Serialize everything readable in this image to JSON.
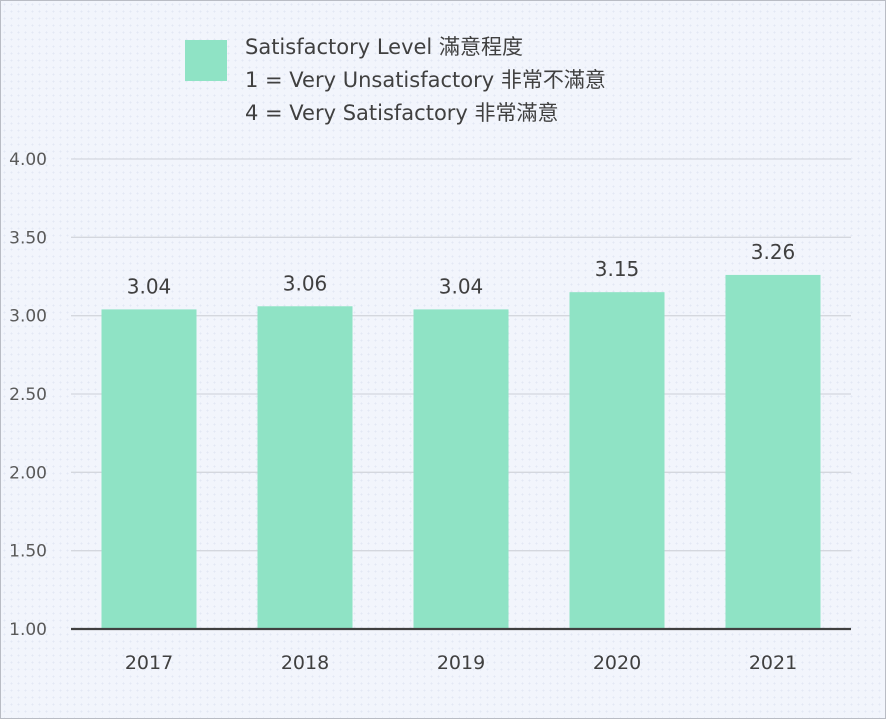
{
  "legend": {
    "lines": [
      "Satisfactory Level 滿意程度",
      "1 = Very Unsatisfactory 非常不滿意",
      "4 = Very Satisfactory 非常滿意"
    ]
  },
  "colors": {
    "bar": "#8fe3c5",
    "grid": "#d4d7de",
    "baseline": "#404040",
    "background": "#f2f5fc"
  },
  "chart_data": {
    "type": "bar",
    "title": "",
    "xlabel": "",
    "ylabel": "",
    "series": [
      {
        "name": "Satisfactory Level 滿意程度",
        "values": [
          3.04,
          3.06,
          3.04,
          3.15,
          3.26
        ]
      }
    ],
    "categories": [
      "2017",
      "2018",
      "2019",
      "2020",
      "2021"
    ],
    "values": [
      3.04,
      3.06,
      3.04,
      3.15,
      3.26
    ],
    "value_labels": [
      "3.04",
      "3.06",
      "3.04",
      "3.15",
      "3.26"
    ],
    "ylim": [
      1.0,
      4.0
    ],
    "y_ticks": [
      1.0,
      1.5,
      2.0,
      2.5,
      3.0,
      3.5,
      4.0
    ],
    "y_tick_labels": [
      "1.00",
      "1.50",
      "2.00",
      "2.50",
      "3.00",
      "3.50",
      "4.00"
    ],
    "grid": true,
    "legend_position": "top"
  }
}
